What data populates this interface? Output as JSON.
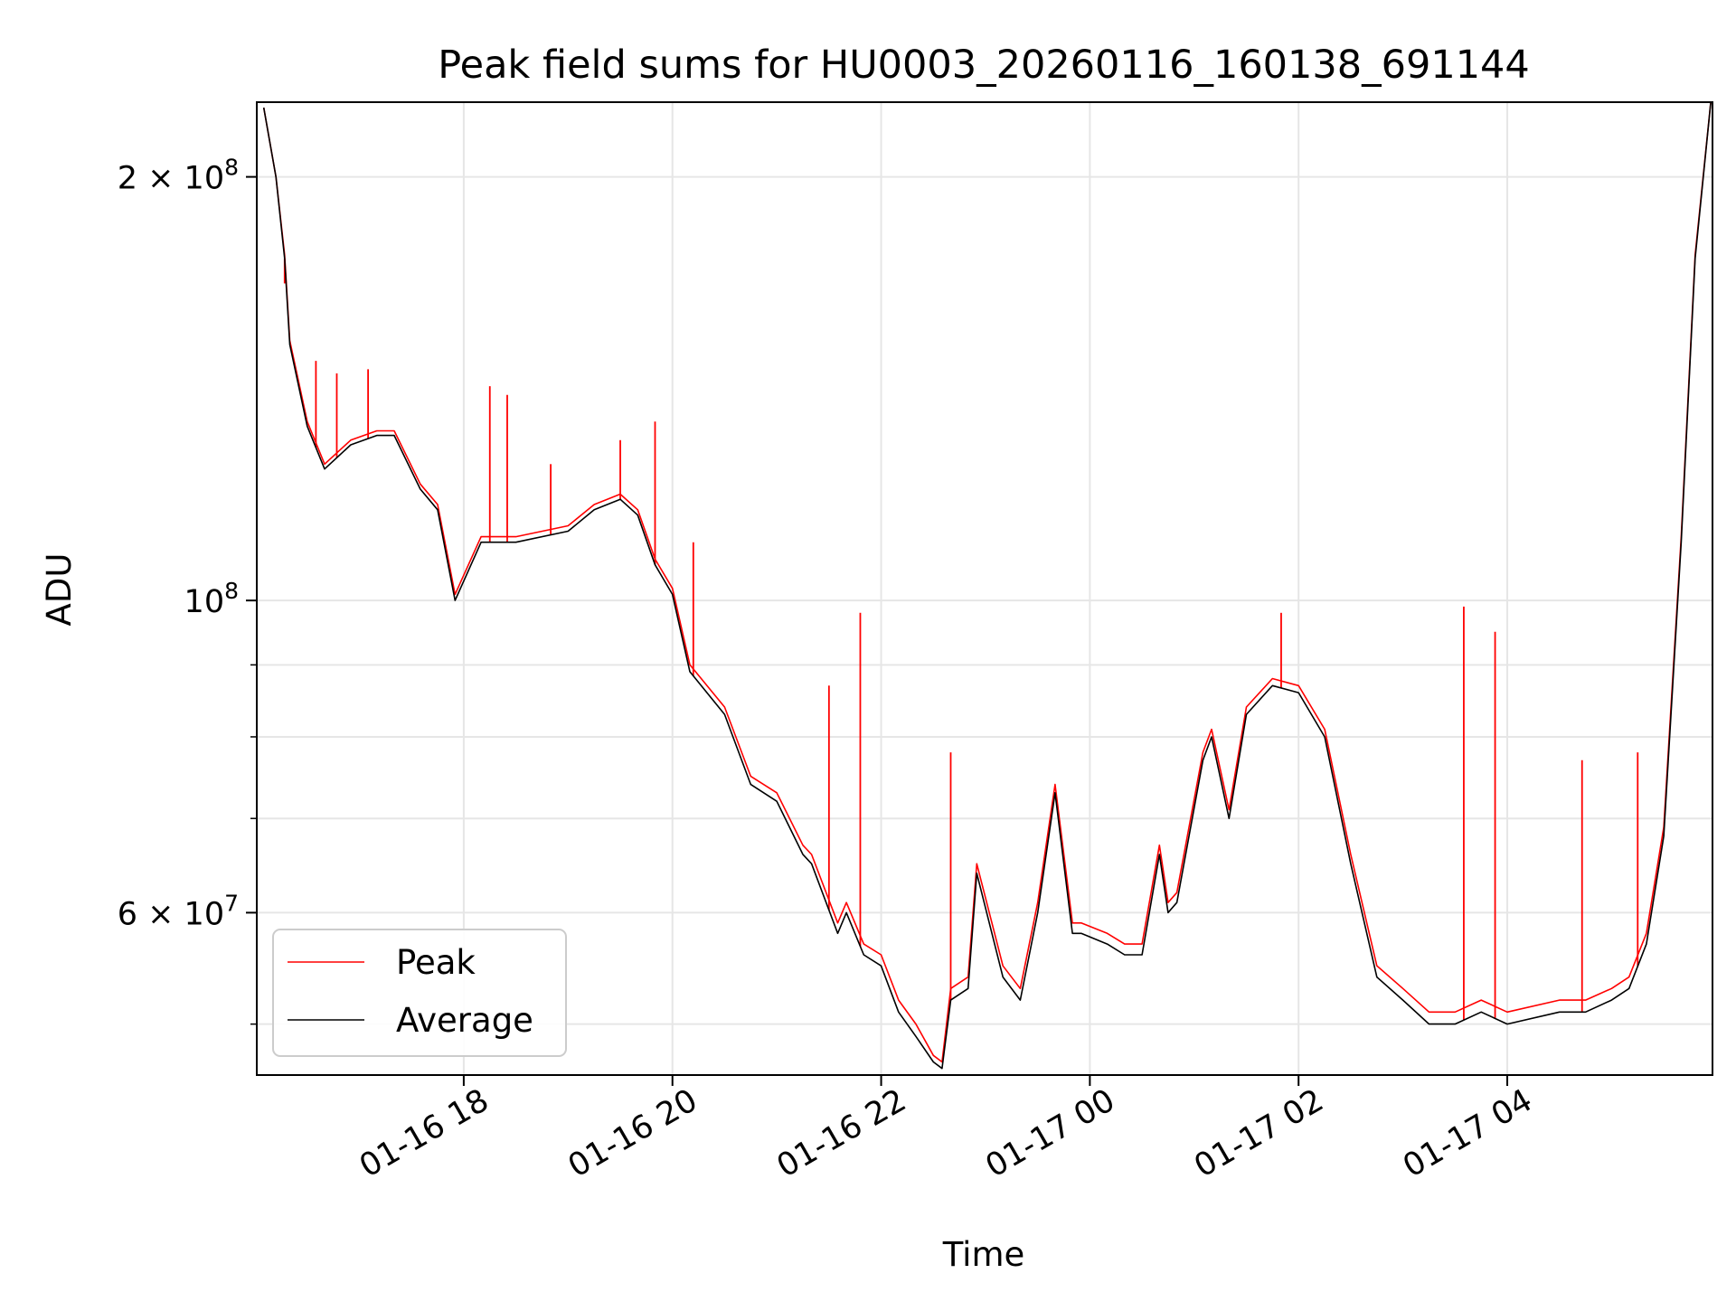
{
  "chart_data": {
    "type": "line",
    "title": "Peak field sums for HU0003_20260116_160138_691144",
    "xlabel": "Time",
    "ylabel": "ADU",
    "yscale": "log",
    "ylim": [
      46000000,
      226000000
    ],
    "xlim": [
      "2026-01-16 16:01",
      "2026-01-17 05:58"
    ],
    "grid": true,
    "legend_position": "bottom-left",
    "x_ticks": [
      {
        "value": "2026-01-16 18:00",
        "label": "01-16 18"
      },
      {
        "value": "2026-01-16 20:00",
        "label": "01-16 20"
      },
      {
        "value": "2026-01-16 22:00",
        "label": "01-16 22"
      },
      {
        "value": "2026-01-17 00:00",
        "label": "01-17 00"
      },
      {
        "value": "2026-01-17 02:00",
        "label": "01-17 02"
      },
      {
        "value": "2026-01-17 04:00",
        "label": "01-17 04"
      }
    ],
    "y_major_ticks": [
      {
        "value": 200000000,
        "mantissa": "2",
        "times": "×",
        "base": "10",
        "exp": "8"
      },
      {
        "value": 100000000,
        "mantissa": "",
        "times": "",
        "base": "10",
        "exp": "8"
      },
      {
        "value": 60000000,
        "mantissa": "6",
        "times": "×",
        "base": "10",
        "exp": "7"
      }
    ],
    "y_minor_ticks": [
      50000000,
      70000000,
      80000000,
      90000000
    ],
    "colors": {
      "Peak": "#ff0000",
      "Average": "#000000"
    },
    "series": [
      {
        "name": "Average",
        "x": [
          "2026-01-16 16:05",
          "2026-01-16 16:12",
          "2026-01-16 16:17",
          "2026-01-16 16:20",
          "2026-01-16 16:30",
          "2026-01-16 16:40",
          "2026-01-16 16:55",
          "2026-01-16 17:10",
          "2026-01-16 17:20",
          "2026-01-16 17:35",
          "2026-01-16 17:45",
          "2026-01-16 17:55",
          "2026-01-16 18:10",
          "2026-01-16 18:30",
          "2026-01-16 19:00",
          "2026-01-16 19:15",
          "2026-01-16 19:30",
          "2026-01-16 19:40",
          "2026-01-16 19:50",
          "2026-01-16 20:00",
          "2026-01-16 20:10",
          "2026-01-16 20:30",
          "2026-01-16 20:45",
          "2026-01-16 21:00",
          "2026-01-16 21:15",
          "2026-01-16 21:20",
          "2026-01-16 21:35",
          "2026-01-16 21:40",
          "2026-01-16 21:50",
          "2026-01-16 22:00",
          "2026-01-16 22:10",
          "2026-01-16 22:20",
          "2026-01-16 22:30",
          "2026-01-16 22:35",
          "2026-01-16 22:40",
          "2026-01-16 22:50",
          "2026-01-16 22:55",
          "2026-01-16 23:10",
          "2026-01-16 23:20",
          "2026-01-16 23:30",
          "2026-01-16 23:40",
          "2026-01-16 23:50",
          "2026-01-16 23:55",
          "2026-01-17 00:10",
          "2026-01-17 00:20",
          "2026-01-17 00:30",
          "2026-01-17 00:40",
          "2026-01-17 00:45",
          "2026-01-17 00:50",
          "2026-01-17 01:05",
          "2026-01-17 01:10",
          "2026-01-17 01:20",
          "2026-01-17 01:30",
          "2026-01-17 01:45",
          "2026-01-17 02:00",
          "2026-01-17 02:15",
          "2026-01-17 02:30",
          "2026-01-17 02:45",
          "2026-01-17 03:00",
          "2026-01-17 03:15",
          "2026-01-17 03:30",
          "2026-01-17 03:45",
          "2026-01-17 04:00",
          "2026-01-17 04:30",
          "2026-01-17 04:45",
          "2026-01-17 05:00",
          "2026-01-17 05:10",
          "2026-01-17 05:20",
          "2026-01-17 05:30",
          "2026-01-17 05:40",
          "2026-01-17 05:48",
          "2026-01-17 05:57"
        ],
        "values": [
          224000000,
          200000000,
          175000000,
          152000000,
          133000000,
          124000000,
          129000000,
          131000000,
          131000000,
          120000000,
          116000000,
          100000000,
          110000000,
          110000000,
          112000000,
          116000000,
          118000000,
          115000000,
          106000000,
          101000000,
          89000000,
          83000000,
          74000000,
          72000000,
          66000000,
          65000000,
          58000000,
          60000000,
          56000000,
          55000000,
          51000000,
          49000000,
          47000000,
          46500000,
          52000000,
          53000000,
          64000000,
          54000000,
          52000000,
          60000000,
          73000000,
          58000000,
          58000000,
          57000000,
          56000000,
          56000000,
          66000000,
          60000000,
          61000000,
          77000000,
          80000000,
          70000000,
          83000000,
          87000000,
          86000000,
          80000000,
          65000000,
          54000000,
          52000000,
          50000000,
          50000000,
          51000000,
          50000000,
          51000000,
          51000000,
          52000000,
          53000000,
          57000000,
          68000000,
          110000000,
          175000000,
          226000000
        ]
      },
      {
        "name": "Peak",
        "x": [
          "2026-01-16 16:05",
          "2026-01-16 16:12",
          "2026-01-16 16:17",
          "2026-01-16 16:20",
          "2026-01-16 16:30",
          "2026-01-16 16:40",
          "2026-01-16 16:55",
          "2026-01-16 17:10",
          "2026-01-16 17:20",
          "2026-01-16 17:35",
          "2026-01-16 17:45",
          "2026-01-16 17:55",
          "2026-01-16 18:10",
          "2026-01-16 18:30",
          "2026-01-16 19:00",
          "2026-01-16 19:15",
          "2026-01-16 19:30",
          "2026-01-16 19:40",
          "2026-01-16 19:50",
          "2026-01-16 20:00",
          "2026-01-16 20:10",
          "2026-01-16 20:30",
          "2026-01-16 20:45",
          "2026-01-16 21:00",
          "2026-01-16 21:15",
          "2026-01-16 21:20",
          "2026-01-16 21:35",
          "2026-01-16 21:40",
          "2026-01-16 21:50",
          "2026-01-16 22:00",
          "2026-01-16 22:10",
          "2026-01-16 22:20",
          "2026-01-16 22:30",
          "2026-01-16 22:35",
          "2026-01-16 22:40",
          "2026-01-16 22:50",
          "2026-01-16 22:55",
          "2026-01-16 23:10",
          "2026-01-16 23:20",
          "2026-01-16 23:30",
          "2026-01-16 23:40",
          "2026-01-16 23:50",
          "2026-01-16 23:55",
          "2026-01-17 00:10",
          "2026-01-17 00:20",
          "2026-01-17 00:30",
          "2026-01-17 00:40",
          "2026-01-17 00:45",
          "2026-01-17 00:50",
          "2026-01-17 01:05",
          "2026-01-17 01:10",
          "2026-01-17 01:20",
          "2026-01-17 01:30",
          "2026-01-17 01:45",
          "2026-01-17 02:00",
          "2026-01-17 02:15",
          "2026-01-17 02:30",
          "2026-01-17 02:45",
          "2026-01-17 03:00",
          "2026-01-17 03:15",
          "2026-01-17 03:30",
          "2026-01-17 03:45",
          "2026-01-17 04:00",
          "2026-01-17 04:30",
          "2026-01-17 04:45",
          "2026-01-17 05:00",
          "2026-01-17 05:10",
          "2026-01-17 05:20",
          "2026-01-17 05:30",
          "2026-01-17 05:40",
          "2026-01-17 05:48",
          "2026-01-17 05:57"
        ],
        "values": [
          224000000,
          200000000,
          176000000,
          153000000,
          134000000,
          125000000,
          130000000,
          132000000,
          132000000,
          121000000,
          117000000,
          101000000,
          111000000,
          111000000,
          113000000,
          117000000,
          119000000,
          116000000,
          107000000,
          102000000,
          90000000,
          84000000,
          75000000,
          73000000,
          67000000,
          66000000,
          59000000,
          61000000,
          57000000,
          56000000,
          52000000,
          50000000,
          47500000,
          47000000,
          53000000,
          54000000,
          65000000,
          55000000,
          53000000,
          61000000,
          74000000,
          59000000,
          59000000,
          58000000,
          57000000,
          57000000,
          67000000,
          61000000,
          62000000,
          78000000,
          81000000,
          71000000,
          84000000,
          88000000,
          87000000,
          81000000,
          66000000,
          55000000,
          53000000,
          51000000,
          51000000,
          52000000,
          51000000,
          52000000,
          52000000,
          53000000,
          54000000,
          58000000,
          69000000,
          111000000,
          176000000,
          226000000
        ],
        "spikes": [
          {
            "x": "2026-01-16 16:17",
            "value": 168000000
          },
          {
            "x": "2026-01-16 16:35",
            "value": 148000000
          },
          {
            "x": "2026-01-16 16:47",
            "value": 145000000
          },
          {
            "x": "2026-01-16 17:05",
            "value": 146000000
          },
          {
            "x": "2026-01-16 18:15",
            "value": 142000000
          },
          {
            "x": "2026-01-16 18:25",
            "value": 140000000
          },
          {
            "x": "2026-01-16 18:50",
            "value": 125000000
          },
          {
            "x": "2026-01-16 19:30",
            "value": 130000000
          },
          {
            "x": "2026-01-16 19:50",
            "value": 134000000
          },
          {
            "x": "2026-01-16 20:12",
            "value": 110000000
          },
          {
            "x": "2026-01-16 21:30",
            "value": 87000000
          },
          {
            "x": "2026-01-16 21:48",
            "value": 98000000
          },
          {
            "x": "2026-01-16 22:40",
            "value": 78000000
          },
          {
            "x": "2026-01-17 01:50",
            "value": 98000000
          },
          {
            "x": "2026-01-17 03:35",
            "value": 99000000
          },
          {
            "x": "2026-01-17 03:53",
            "value": 95000000
          },
          {
            "x": "2026-01-17 04:43",
            "value": 77000000
          },
          {
            "x": "2026-01-17 05:15",
            "value": 78000000
          }
        ]
      }
    ]
  }
}
